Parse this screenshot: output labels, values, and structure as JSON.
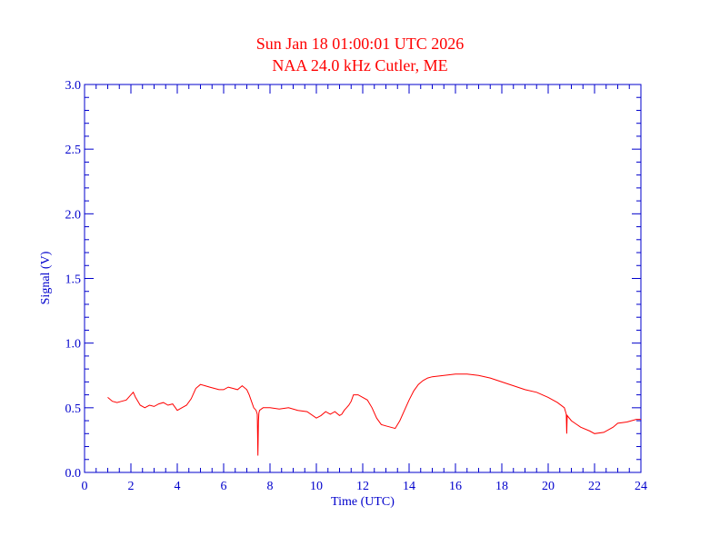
{
  "chart_data": {
    "type": "line",
    "title": "Sun Jan 18 01:00:01 UTC 2026",
    "subtitle": "NAA 24.0 kHz Cutler, ME",
    "xlabel": "Time (UTC)",
    "ylabel": "Signal (V)",
    "xlim": [
      0,
      24
    ],
    "ylim": [
      0,
      3.0
    ],
    "xticks": [
      0,
      2,
      4,
      6,
      8,
      10,
      12,
      14,
      16,
      18,
      20,
      22,
      24
    ],
    "xtick_labels": [
      "0",
      "2",
      "4",
      "6",
      "8",
      "10",
      "12",
      "14",
      "16",
      "18",
      "20",
      "22",
      "24"
    ],
    "yticks": [
      0,
      0.5,
      1.0,
      1.5,
      2.0,
      2.5,
      3.0
    ],
    "ytick_labels": [
      "0.0",
      "0.5",
      "1.0",
      "1.5",
      "2.0",
      "2.5",
      "3.0"
    ],
    "grid": false,
    "colors": {
      "title": "#ff0000",
      "axes": "#0000cc",
      "series": "#ff0000"
    },
    "series": [
      {
        "x": [
          1.0,
          1.2,
          1.4,
          1.6,
          1.8,
          2.0,
          2.1,
          2.2,
          2.3,
          2.4,
          2.6,
          2.8,
          3.0,
          3.2,
          3.4,
          3.6,
          3.8,
          4.0,
          4.2,
          4.4,
          4.6,
          4.8,
          5.0,
          5.2,
          5.4,
          5.6,
          5.8,
          6.0,
          6.2,
          6.4,
          6.6,
          6.8,
          7.0,
          7.1,
          7.2,
          7.3,
          7.4,
          7.45,
          7.48,
          7.5,
          7.52,
          7.55,
          7.7,
          8.0,
          8.4,
          8.8,
          9.2,
          9.6,
          10.0,
          10.2,
          10.4,
          10.6,
          10.8,
          11.0,
          11.1,
          11.2,
          11.3,
          11.4,
          11.5,
          11.6,
          11.8,
          12.0,
          12.2,
          12.4,
          12.6,
          12.8,
          13.0,
          13.2,
          13.4,
          13.6,
          13.8,
          14.0,
          14.2,
          14.4,
          14.6,
          14.8,
          15.0,
          15.5,
          16.0,
          16.5,
          17.0,
          17.5,
          18.0,
          18.5,
          19.0,
          19.5,
          20.0,
          20.4,
          20.7,
          20.78,
          20.8,
          20.82,
          21.0,
          21.4,
          21.8,
          22.0,
          22.4,
          22.8,
          23.0,
          23.4,
          23.8,
          24.0
        ],
        "y": [
          0.58,
          0.55,
          0.54,
          0.55,
          0.56,
          0.6,
          0.62,
          0.58,
          0.55,
          0.52,
          0.5,
          0.52,
          0.51,
          0.53,
          0.54,
          0.52,
          0.53,
          0.48,
          0.5,
          0.52,
          0.57,
          0.65,
          0.68,
          0.67,
          0.66,
          0.65,
          0.64,
          0.64,
          0.66,
          0.65,
          0.64,
          0.67,
          0.64,
          0.6,
          0.55,
          0.5,
          0.48,
          0.45,
          0.13,
          0.4,
          0.46,
          0.48,
          0.5,
          0.5,
          0.49,
          0.5,
          0.48,
          0.47,
          0.42,
          0.44,
          0.47,
          0.45,
          0.47,
          0.44,
          0.45,
          0.48,
          0.5,
          0.52,
          0.55,
          0.6,
          0.6,
          0.58,
          0.56,
          0.5,
          0.42,
          0.37,
          0.36,
          0.35,
          0.34,
          0.4,
          0.48,
          0.56,
          0.63,
          0.68,
          0.71,
          0.73,
          0.74,
          0.75,
          0.76,
          0.76,
          0.75,
          0.73,
          0.7,
          0.67,
          0.64,
          0.62,
          0.58,
          0.54,
          0.5,
          0.45,
          0.3,
          0.44,
          0.4,
          0.35,
          0.32,
          0.3,
          0.31,
          0.35,
          0.38,
          0.39,
          0.41,
          0.41
        ]
      }
    ]
  }
}
